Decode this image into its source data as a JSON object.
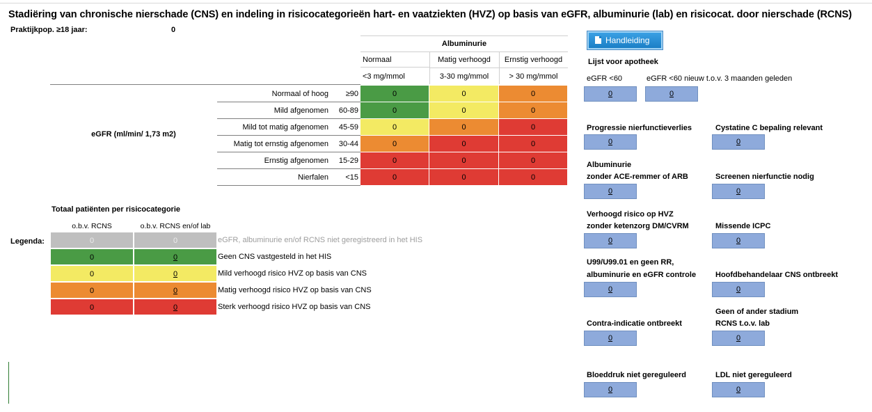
{
  "title": "Stadiëring van chronische nierschade (CNS) en indeling in risicocategorieën hart- en vaatziekten (HVZ) op basis van eGFR, albuminurie (lab) en risicocat. door nierschade (RCNS)",
  "practice_pop": {
    "label": "Praktijkpop. ≥18 jaar:",
    "value": "0"
  },
  "matrix": {
    "albuminuria_header": "Albuminurie",
    "columns": [
      {
        "name": "Normaal",
        "unit": "<3 mg/mmol"
      },
      {
        "name": "Matig verhoogd",
        "unit": "3-30 mg/mmol"
      },
      {
        "name": "Ernstig verhoogd",
        "unit": "> 30 mg/mmol"
      }
    ],
    "egfr_label": "eGFR (ml/min/ 1,73 m2)",
    "rows": [
      {
        "label": "Normaal of hoog",
        "range": "≥90",
        "values": [
          "0",
          "0",
          "0"
        ],
        "colors": [
          "green",
          "yellow",
          "orange"
        ]
      },
      {
        "label": "Mild afgenomen",
        "range": "60-89",
        "values": [
          "0",
          "0",
          "0"
        ],
        "colors": [
          "green",
          "yellow",
          "orange"
        ]
      },
      {
        "label": "Mild tot matig afgenomen",
        "range": "45-59",
        "values": [
          "0",
          "0",
          "0"
        ],
        "colors": [
          "yellow",
          "orange",
          "red"
        ]
      },
      {
        "label": "Matig tot ernstig afgenomen",
        "range": "30-44",
        "values": [
          "0",
          "0",
          "0"
        ],
        "colors": [
          "orange",
          "red",
          "red"
        ]
      },
      {
        "label": "Ernstig afgenomen",
        "range": "15-29",
        "values": [
          "0",
          "0",
          "0"
        ],
        "colors": [
          "red",
          "red",
          "red"
        ]
      },
      {
        "label": "Nierfalen",
        "range": "<15",
        "values": [
          "0",
          "0",
          "0"
        ],
        "colors": [
          "red",
          "red",
          "red"
        ]
      }
    ]
  },
  "totals": {
    "title": "Totaal patiënten per risicocategorie",
    "col1": "o.b.v. RCNS",
    "col2": "o.b.v. RCNS en/of lab",
    "legend_label": "Legenda:",
    "rows": [
      {
        "v1": "0",
        "v2": "0",
        "color": "grey",
        "text": "eGFR, albuminurie en/of RCNS niet geregistreerd in het HIS"
      },
      {
        "v1": "0",
        "v2": "0",
        "color": "green",
        "text": "Geen CNS vastgesteld in het HIS"
      },
      {
        "v1": "0",
        "v2": "0",
        "color": "yellow",
        "text": "Mild verhoogd risico HVZ op basis van CNS"
      },
      {
        "v1": "0",
        "v2": "0",
        "color": "orange",
        "text": "Matig verhoogd risico HVZ op basis van CNS"
      },
      {
        "v1": "0",
        "v2": "0",
        "color": "red",
        "text": "Sterk verhoogd risico HVZ op basis van CNS"
      }
    ]
  },
  "colors": {
    "green": "#4a9b45",
    "yellow": "#f3ea63",
    "orange": "#ec8b32",
    "red": "#df3b34",
    "grey": "#bfbfbf",
    "box": "#8eaadb"
  },
  "right": {
    "manual_button": "Handleiding",
    "manual_icon": "document-icon",
    "pharmacy_title": "Lijst voor apotheek",
    "egfr60": {
      "label": "eGFR <60",
      "value": "0"
    },
    "egfr60_new": {
      "label": "eGFR <60 nieuw t.o.v. 3 maanden geleden",
      "value": "0"
    },
    "progressie": {
      "label": "Progressie nierfunctieverlies",
      "value": "0"
    },
    "cystatine": {
      "label": "Cystatine C bepaling relevant",
      "value": "0"
    },
    "albuminurie_ace": {
      "line1": "Albuminurie",
      "line2": "zonder ACE-remmer of ARB",
      "value": "0"
    },
    "screenen": {
      "label": "Screenen nierfunctie nodig",
      "value": "0"
    },
    "hvz": {
      "line1": "Verhoogd risico op HVZ",
      "line2": "zonder ketenzorg DM/CVRM",
      "value": "0"
    },
    "icpc": {
      "label": "Missende ICPC",
      "value": "0"
    },
    "u99": {
      "line1": "U99/U99.01 en geen RR,",
      "line2": "albuminurie en eGFR controle",
      "value": "0"
    },
    "hoofdbehandelaar": {
      "label": "Hoofdbehandelaar CNS ontbreekt",
      "value": "0"
    },
    "contra": {
      "label": "Contra-indicatie ontbreekt",
      "value": "0"
    },
    "stadium": {
      "line1": "Geen of ander stadium",
      "line2": "RCNS t.o.v. lab",
      "value": "0"
    },
    "bloeddruk": {
      "label": "Bloeddruk niet gereguleerd",
      "value": "0"
    },
    "ldl": {
      "label": "LDL niet gereguleerd",
      "value": "0"
    }
  }
}
